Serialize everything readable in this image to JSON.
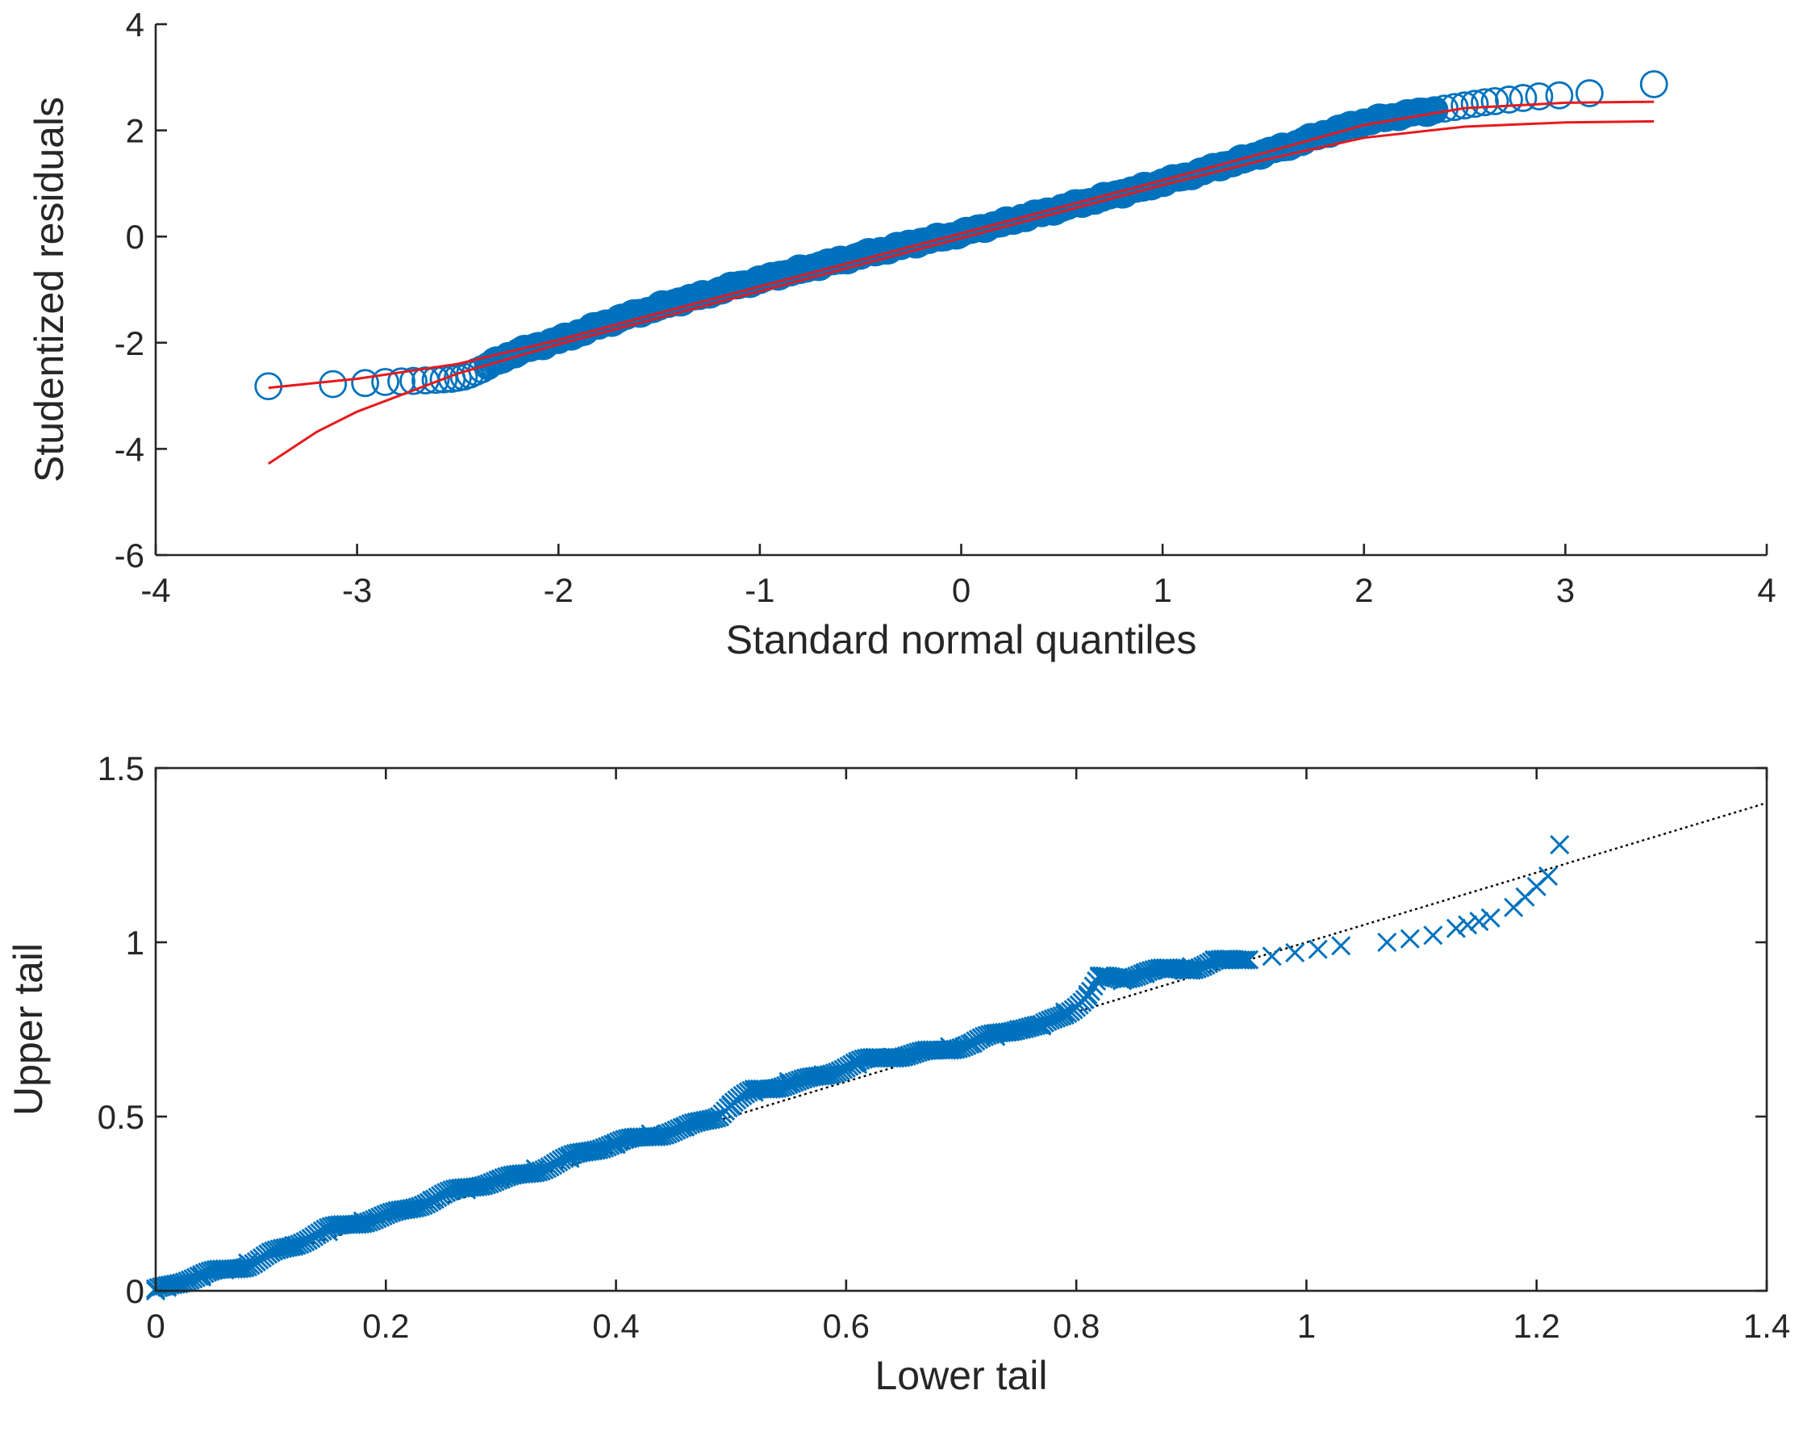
{
  "chart_data": [
    {
      "type": "scatter",
      "subtype": "normal-qq",
      "xlabel": "Standard normal quantiles",
      "ylabel": "Studentized residuals",
      "xlim": [
        -4,
        4
      ],
      "ylim": [
        -6,
        4
      ],
      "xticks": [
        -4,
        -3,
        -2,
        -1,
        0,
        1,
        2,
        3,
        4
      ],
      "yticks": [
        -6,
        -4,
        -2,
        0,
        2,
        4
      ],
      "xtick_labels": [
        "-4",
        "-3",
        "-2",
        "-1",
        "0",
        "1",
        "2",
        "3",
        "4"
      ],
      "ytick_labels": [
        "-6",
        "-4",
        "-2",
        "0",
        "2",
        "4"
      ],
      "marker": "circle",
      "marker_color": "#0072BD",
      "band_color": "#E8191C",
      "grid": false,
      "series": [
        {
          "name": "residual quantiles (sampled)",
          "x": [
            -3.44,
            -3.12,
            -2.96,
            -2.86,
            -2.78,
            -2.72,
            -2.66,
            -2.61,
            -2.57,
            -2.53,
            -2.5,
            -2.47,
            -2.44,
            -2.41,
            -2.38,
            -2.35,
            -2.3,
            -2.25,
            -2.2,
            -2.1,
            -2.0,
            -1.9,
            -1.8,
            -1.7,
            -1.6,
            -1.5,
            -1.4,
            -1.3,
            -1.2,
            -1.1,
            -1.0,
            -0.9,
            -0.8,
            -0.7,
            -0.6,
            -0.5,
            -0.4,
            -0.3,
            -0.2,
            -0.1,
            0.0,
            0.1,
            0.2,
            0.3,
            0.4,
            0.5,
            0.6,
            0.7,
            0.8,
            0.9,
            1.0,
            1.1,
            1.2,
            1.3,
            1.4,
            1.5,
            1.6,
            1.7,
            1.8,
            1.9,
            2.0,
            2.1,
            2.2,
            2.3,
            2.35,
            2.4,
            2.45,
            2.5,
            2.55,
            2.6,
            2.65,
            2.72,
            2.79,
            2.87,
            2.97,
            3.12,
            3.44
          ],
          "y": [
            -2.82,
            -2.78,
            -2.76,
            -2.74,
            -2.73,
            -2.72,
            -2.71,
            -2.7,
            -2.69,
            -2.68,
            -2.66,
            -2.64,
            -2.6,
            -2.55,
            -2.5,
            -2.44,
            -2.34,
            -2.25,
            -2.18,
            -2.06,
            -1.95,
            -1.82,
            -1.68,
            -1.55,
            -1.44,
            -1.32,
            -1.22,
            -1.12,
            -1.02,
            -0.91,
            -0.82,
            -0.72,
            -0.63,
            -0.54,
            -0.45,
            -0.36,
            -0.27,
            -0.18,
            -0.1,
            -0.02,
            0.06,
            0.16,
            0.25,
            0.35,
            0.44,
            0.54,
            0.63,
            0.73,
            0.82,
            0.92,
            1.02,
            1.12,
            1.23,
            1.34,
            1.45,
            1.57,
            1.68,
            1.8,
            1.93,
            2.05,
            2.15,
            2.23,
            2.3,
            2.35,
            2.38,
            2.41,
            2.44,
            2.47,
            2.5,
            2.53,
            2.55,
            2.58,
            2.61,
            2.64,
            2.66,
            2.7,
            2.87
          ]
        },
        {
          "name": "confidence band upper",
          "x": [
            -3.44,
            -3.0,
            -2.5,
            -2.0,
            -1.5,
            -1.0,
            -0.5,
            0.0,
            0.5,
            1.0,
            1.5,
            2.0,
            2.5,
            3.0,
            3.44
          ],
          "y": [
            -2.85,
            -2.68,
            -2.4,
            -1.95,
            -1.44,
            -0.94,
            -0.44,
            0.06,
            0.56,
            1.06,
            1.57,
            2.1,
            2.42,
            2.52,
            2.54
          ]
        },
        {
          "name": "confidence band lower",
          "x": [
            -3.44,
            -3.2,
            -3.0,
            -2.5,
            -2.0,
            -1.5,
            -1.0,
            -0.5,
            0.0,
            0.5,
            1.0,
            1.5,
            2.0,
            2.5,
            3.0,
            3.44
          ],
          "y": [
            -4.28,
            -3.68,
            -3.3,
            -2.58,
            -2.03,
            -1.53,
            -1.03,
            -0.53,
            -0.03,
            0.47,
            0.97,
            1.44,
            1.86,
            2.07,
            2.15,
            2.17
          ]
        }
      ]
    },
    {
      "type": "scatter",
      "subtype": "tail-comparison",
      "xlabel": "Lower tail",
      "ylabel": "Upper tail",
      "xlim": [
        0,
        1.4
      ],
      "ylim": [
        0,
        1.5
      ],
      "xticks": [
        0,
        0.2,
        0.4,
        0.6,
        0.8,
        1.0,
        1.2,
        1.4
      ],
      "yticks": [
        0,
        0.5,
        1.0,
        1.5
      ],
      "xtick_labels": [
        "0",
        "0.2",
        "0.4",
        "0.6",
        "0.8",
        "1",
        "1.2",
        "1.4"
      ],
      "ytick_labels": [
        "0",
        "0.5",
        "1",
        "1.5"
      ],
      "marker": "x",
      "marker_color": "#0072BD",
      "reference_line": {
        "x": [
          0,
          1.4
        ],
        "y": [
          0,
          1.4
        ],
        "style": "dotted",
        "color": "#000000"
      },
      "grid": false,
      "series": [
        {
          "name": "tail pairs (sampled)",
          "x": [
            0.0,
            0.01,
            0.02,
            0.04,
            0.06,
            0.08,
            0.1,
            0.12,
            0.15,
            0.18,
            0.21,
            0.24,
            0.27,
            0.3,
            0.33,
            0.36,
            0.4,
            0.43,
            0.46,
            0.49,
            0.5,
            0.52,
            0.55,
            0.58,
            0.61,
            0.64,
            0.67,
            0.69,
            0.71,
            0.73,
            0.75,
            0.77,
            0.79,
            0.81,
            0.82,
            0.84,
            0.86,
            0.88,
            0.9,
            0.92,
            0.94,
            0.97,
            0.99,
            1.01,
            1.03,
            1.07,
            1.09,
            1.11,
            1.13,
            1.14,
            1.15,
            1.16,
            1.18,
            1.19,
            1.2,
            1.21,
            1.22
          ],
          "y": [
            0.0,
            0.01,
            0.02,
            0.04,
            0.06,
            0.08,
            0.11,
            0.13,
            0.17,
            0.2,
            0.23,
            0.26,
            0.29,
            0.32,
            0.35,
            0.38,
            0.42,
            0.45,
            0.47,
            0.5,
            0.53,
            0.57,
            0.6,
            0.62,
            0.65,
            0.67,
            0.69,
            0.7,
            0.71,
            0.73,
            0.75,
            0.76,
            0.8,
            0.85,
            0.9,
            0.89,
            0.91,
            0.92,
            0.93,
            0.95,
            0.95,
            0.96,
            0.97,
            0.98,
            0.99,
            1.0,
            1.01,
            1.02,
            1.04,
            1.05,
            1.06,
            1.07,
            1.1,
            1.13,
            1.16,
            1.19,
            1.28
          ]
        }
      ]
    }
  ]
}
